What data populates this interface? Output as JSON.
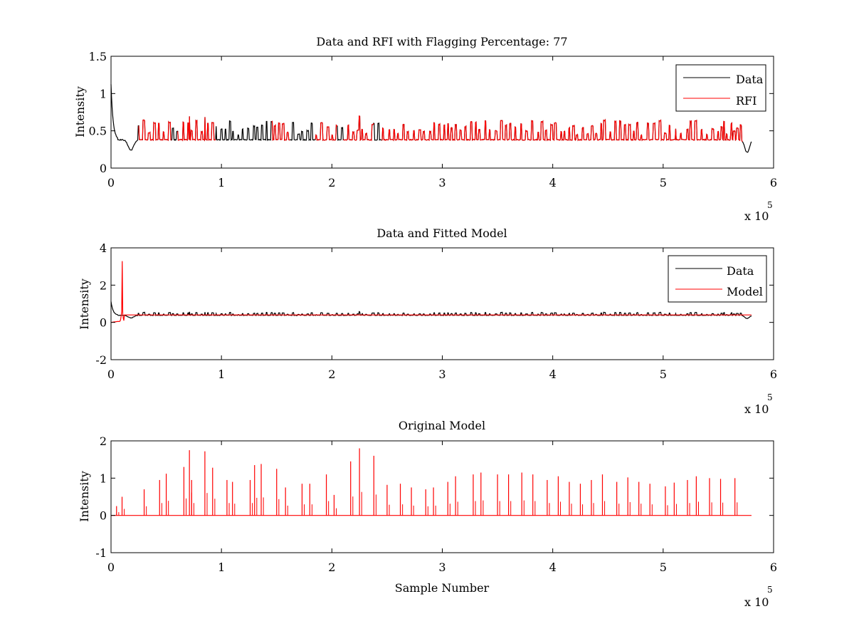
{
  "figure": {
    "background": "#ffffff"
  },
  "chart_data": [
    {
      "type": "line",
      "title": "Data and RFI with Flagging Percentage: 77",
      "xlabel": "",
      "ylabel": "Intensity",
      "xlim": [
        0,
        6
      ],
      "ylim": [
        0,
        1.5
      ],
      "xticks": [
        0,
        1,
        2,
        3,
        4,
        5,
        6
      ],
      "yticks": [
        0,
        0.5,
        1,
        1.5
      ],
      "ytick_labels": [
        "0",
        "0.5",
        "1",
        "1.5"
      ],
      "x_multiplier": {
        "base": "x 10",
        "exponent": "5"
      },
      "legend": {
        "position": "top-right",
        "entries": [
          {
            "label": "Data",
            "color": "#000000"
          },
          {
            "label": "RFI",
            "color": "#ff0000"
          }
        ]
      },
      "series": [
        {
          "name": "Data",
          "color": "#000000",
          "description": "baseline about 0.38 with initial spike near 1.1 at x=0, dip to 0.24 near x=0.18, dip to 0.2 near x=5.75, ends near 0.35 at x=5.8"
        },
        {
          "name": "RFI",
          "color": "#ff0000",
          "description": "flagged segments of the data, spikes 0.45-0.7 across x=0.25 to 5.7"
        }
      ]
    },
    {
      "type": "line",
      "title": "Data and Fitted Model",
      "xlabel": "",
      "ylabel": "Intensity",
      "xlim": [
        0,
        6
      ],
      "ylim": [
        -2,
        4
      ],
      "xticks": [
        0,
        1,
        2,
        3,
        4,
        5,
        6
      ],
      "yticks": [
        -2,
        0,
        2,
        4
      ],
      "ytick_labels": [
        "-2",
        "0",
        "2",
        "4"
      ],
      "x_multiplier": {
        "base": "x 10",
        "exponent": "5"
      },
      "legend": {
        "position": "top-right",
        "entries": [
          {
            "label": "Data",
            "color": "#000000"
          },
          {
            "label": "Model",
            "color": "#ff0000"
          }
        ]
      },
      "series": [
        {
          "name": "Data",
          "color": "#000000",
          "description": "baseline about 0.4, initial value 1.1 at x=0"
        },
        {
          "name": "Model",
          "color": "#ff0000",
          "description": "baseline about 0.4, spike to 2.7 near x=0.1"
        }
      ]
    },
    {
      "type": "line",
      "title": "Original Model",
      "xlabel": "Sample Number",
      "ylabel": "Intensity",
      "xlim": [
        0,
        6
      ],
      "ylim": [
        -1,
        2
      ],
      "xticks": [
        0,
        1,
        2,
        3,
        4,
        5,
        6
      ],
      "yticks": [
        -1,
        0,
        1,
        2
      ],
      "ytick_labels": [
        "-1",
        "0",
        "1",
        "2"
      ],
      "x_multiplier": {
        "base": "x 10",
        "exponent": "5"
      },
      "series": [
        {
          "name": "Model",
          "color": "#ff0000",
          "x_range": [
            0,
            5.8
          ],
          "spikes": [
            [
              0.05,
              0.25
            ],
            [
              0.1,
              0.5
            ],
            [
              0.3,
              0.7
            ],
            [
              0.44,
              0.95
            ],
            [
              0.5,
              1.12
            ],
            [
              0.66,
              1.3
            ],
            [
              0.71,
              1.75
            ],
            [
              0.73,
              0.95
            ],
            [
              0.85,
              1.72
            ],
            [
              0.92,
              1.28
            ],
            [
              1.05,
              0.95
            ],
            [
              1.1,
              0.9
            ],
            [
              1.26,
              0.95
            ],
            [
              1.3,
              1.35
            ],
            [
              1.36,
              1.38
            ],
            [
              1.5,
              1.25
            ],
            [
              1.58,
              0.75
            ],
            [
              1.73,
              0.85
            ],
            [
              1.8,
              0.85
            ],
            [
              1.95,
              1.1
            ],
            [
              2.02,
              0.55
            ],
            [
              2.17,
              1.45
            ],
            [
              2.25,
              1.8
            ],
            [
              2.38,
              1.6
            ],
            [
              2.5,
              0.82
            ],
            [
              2.62,
              0.85
            ],
            [
              2.72,
              0.75
            ],
            [
              2.85,
              0.7
            ],
            [
              2.92,
              0.75
            ],
            [
              3.05,
              0.9
            ],
            [
              3.12,
              1.05
            ],
            [
              3.28,
              1.1
            ],
            [
              3.35,
              1.15
            ],
            [
              3.5,
              1.1
            ],
            [
              3.6,
              1.1
            ],
            [
              3.72,
              1.15
            ],
            [
              3.82,
              1.1
            ],
            [
              3.95,
              0.95
            ],
            [
              4.05,
              1.05
            ],
            [
              4.15,
              0.9
            ],
            [
              4.25,
              0.85
            ],
            [
              4.35,
              0.95
            ],
            [
              4.45,
              1.1
            ],
            [
              4.58,
              0.9
            ],
            [
              4.68,
              1.02
            ],
            [
              4.78,
              0.9
            ],
            [
              4.88,
              0.85
            ],
            [
              5.02,
              0.78
            ],
            [
              5.1,
              0.88
            ],
            [
              5.22,
              0.95
            ],
            [
              5.3,
              1.05
            ],
            [
              5.42,
              1.0
            ],
            [
              5.52,
              0.98
            ],
            [
              5.65,
              1.0
            ]
          ]
        }
      ]
    }
  ]
}
